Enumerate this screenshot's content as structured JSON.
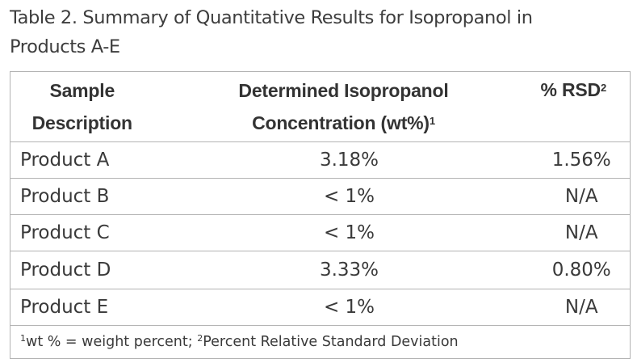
{
  "caption": {
    "line1": "Table 2. Summary of Quantitative Results for Isopropanol in",
    "line2": "Products A-E"
  },
  "table": {
    "headers": {
      "description_line1": "Sample",
      "description_line2": "Description",
      "concentration_line1": "Determined Isopropanol",
      "concentration_line2": "Concentration (wt%)",
      "concentration_sup": "1",
      "rsd": "% RSD",
      "rsd_sup": "2"
    },
    "rows": [
      {
        "description": "Product A",
        "concentration": "3.18%",
        "rsd": "1.56%"
      },
      {
        "description": "Product B",
        "concentration": "< 1%",
        "rsd": "N/A"
      },
      {
        "description": "Product C",
        "concentration": "< 1%",
        "rsd": "N/A"
      },
      {
        "description": "Product D",
        "concentration": "3.33%",
        "rsd": "0.80%"
      },
      {
        "description": "Product E",
        "concentration": "< 1%",
        "rsd": "N/A"
      }
    ],
    "footnote": {
      "sup1": "1",
      "text1": "wt % = weight percent; ",
      "sup2": "2",
      "text2": "Percent Relative Standard Deviation"
    }
  }
}
